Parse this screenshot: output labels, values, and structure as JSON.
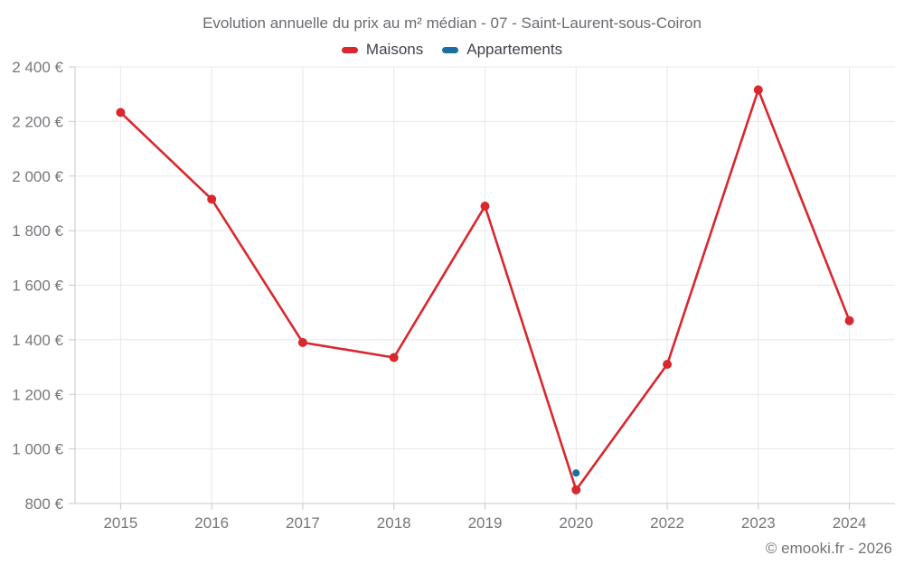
{
  "header": {
    "title": "Evolution annuelle du prix au m² médian - 07 - Saint-Laurent-sous-Coiron"
  },
  "legend": {
    "items": [
      {
        "label": "Maisons",
        "color": "#d9272e"
      },
      {
        "label": "Appartements",
        "color": "#1b6f9e"
      }
    ]
  },
  "footer": {
    "credit": "© emooki.fr - 2026"
  },
  "colors": {
    "maisons": "#d9272e",
    "appartements": "#1b6f9e",
    "gridline": "#e8e8e8",
    "axis_line": "#c9c9c9",
    "tick_label": "#75787c",
    "title_text": "#686b70"
  },
  "chart_data": {
    "type": "line",
    "title": "Evolution annuelle du prix au m² médian - 07 - Saint-Laurent-sous-Coiron",
    "categories": [
      "2015",
      "2016",
      "2017",
      "2018",
      "2019",
      "2020",
      "2022",
      "2023",
      "2024"
    ],
    "series": [
      {
        "name": "Maisons",
        "color": "#d9272e",
        "values": [
          2233,
          1915,
          1390,
          1335,
          1890,
          850,
          1310,
          2316,
          1470
        ],
        "marker_radius": 5,
        "line_width": 2.6
      },
      {
        "name": "Appartements",
        "color": "#1b6f9e",
        "values": [
          null,
          null,
          null,
          null,
          null,
          912,
          null,
          null,
          null
        ],
        "marker_radius": 4,
        "line_width": 2.6
      }
    ],
    "xlabel": "",
    "ylabel": "",
    "ylim": [
      800,
      2400
    ],
    "y_ticks": [
      800,
      1000,
      1200,
      1400,
      1600,
      1800,
      2000,
      2200,
      2400
    ],
    "y_tick_suffix": " €",
    "grid": true,
    "legend_position": "top"
  }
}
